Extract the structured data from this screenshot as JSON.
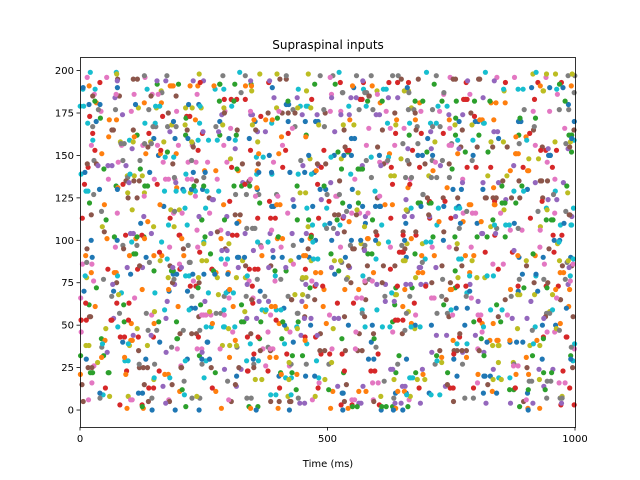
{
  "chart_data": {
    "type": "scatter",
    "title": "Supraspinal inputs",
    "xlabel": "Time (ms)",
    "ylabel": "",
    "xlim": [
      0,
      1000
    ],
    "ylim": [
      -10,
      208
    ],
    "xticks": [
      0,
      500,
      1000
    ],
    "yticks": [
      0,
      25,
      50,
      75,
      100,
      125,
      150,
      175,
      200
    ],
    "grid": false,
    "legend": "none",
    "marker": "filled-circle",
    "series_count": 200,
    "spike_rate_hz": 10,
    "duration_ms": 1000,
    "colors": [
      "#1f77b4",
      "#ff7f0e",
      "#2ca02c",
      "#d62728",
      "#9467bd",
      "#8c564b",
      "#e377c2",
      "#7f7f7f",
      "#bcbd22",
      "#17becf"
    ]
  }
}
